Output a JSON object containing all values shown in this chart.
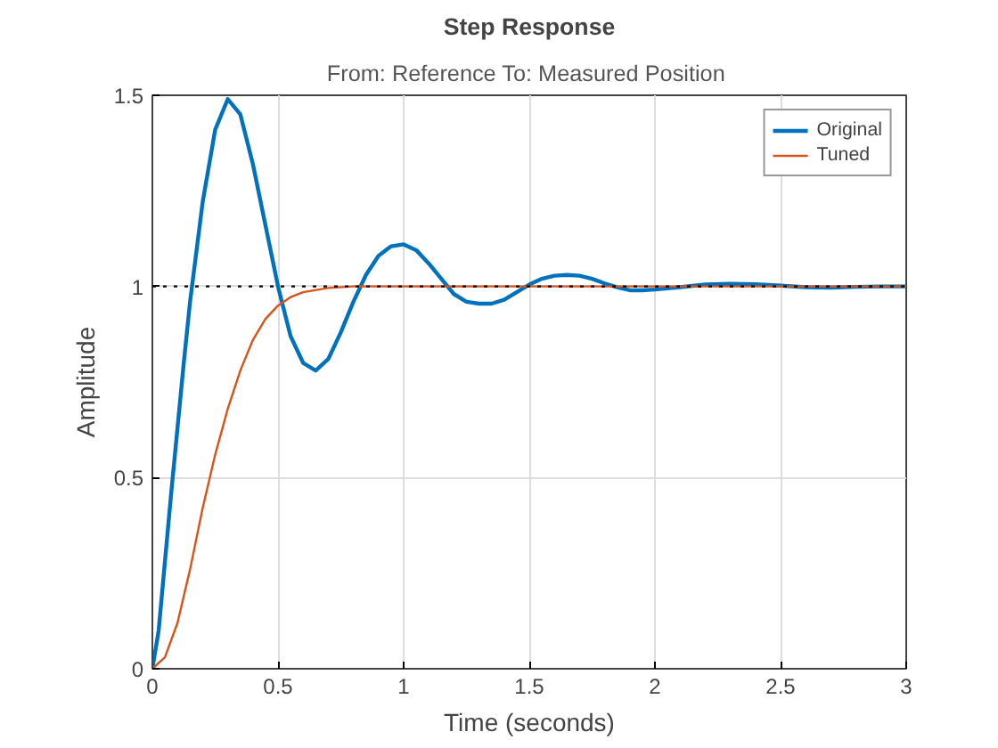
{
  "chart_data": {
    "type": "line",
    "title": "Step Response",
    "subtitle": "From: Reference  To: Measured Position",
    "xlabel": "Time (seconds)",
    "ylabel": "Amplitude",
    "series": [
      {
        "name": "Original",
        "color": "#0072bd",
        "x": [
          0,
          0.025,
          0.05,
          0.075,
          0.1,
          0.125,
          0.15,
          0.2,
          0.25,
          0.3,
          0.35,
          0.4,
          0.45,
          0.5,
          0.55,
          0.6,
          0.65,
          0.7,
          0.75,
          0.8,
          0.85,
          0.9,
          0.95,
          1.0,
          1.05,
          1.1,
          1.15,
          1.2,
          1.25,
          1.3,
          1.35,
          1.4,
          1.45,
          1.5,
          1.55,
          1.6,
          1.65,
          1.7,
          1.75,
          1.8,
          1.85,
          1.9,
          1.95,
          2.0,
          2.1,
          2.2,
          2.3,
          2.4,
          2.5,
          2.6,
          2.7,
          2.8,
          2.9,
          3.0
        ],
        "values": [
          0,
          0.1,
          0.28,
          0.46,
          0.63,
          0.8,
          0.96,
          1.22,
          1.41,
          1.49,
          1.45,
          1.32,
          1.16,
          1.0,
          0.87,
          0.8,
          0.78,
          0.81,
          0.88,
          0.96,
          1.03,
          1.08,
          1.105,
          1.11,
          1.095,
          1.06,
          1.02,
          0.98,
          0.96,
          0.955,
          0.955,
          0.965,
          0.985,
          1.005,
          1.02,
          1.028,
          1.03,
          1.028,
          1.02,
          1.008,
          0.998,
          0.99,
          0.99,
          0.992,
          0.998,
          1.005,
          1.007,
          1.006,
          1.002,
          0.998,
          0.997,
          0.999,
          1.0,
          1.0
        ]
      },
      {
        "name": "Tuned",
        "color": "#d95319",
        "x": [
          0,
          0.05,
          0.1,
          0.15,
          0.2,
          0.25,
          0.3,
          0.35,
          0.4,
          0.45,
          0.5,
          0.55,
          0.6,
          0.7,
          0.8,
          1.0,
          1.5,
          2.0,
          2.5,
          3.0
        ],
        "values": [
          0,
          0.03,
          0.12,
          0.26,
          0.42,
          0.56,
          0.68,
          0.78,
          0.86,
          0.915,
          0.95,
          0.972,
          0.985,
          0.996,
          1.0,
          1.0,
          1.0,
          1.0,
          1.0,
          1.0
        ]
      }
    ],
    "xlim": [
      0,
      3
    ],
    "ylim": [
      0,
      1.5
    ],
    "xticks": [
      0,
      0.5,
      1,
      1.5,
      2,
      2.5,
      3
    ],
    "yticks": [
      0,
      0.5,
      1,
      1.5
    ],
    "ref_lines": [
      {
        "axis": "y",
        "value": 1,
        "label": null,
        "color": "#000000",
        "line_style": "dotted"
      }
    ],
    "grid": true,
    "legend": "top right",
    "marker": "none",
    "line_style": "solid"
  }
}
